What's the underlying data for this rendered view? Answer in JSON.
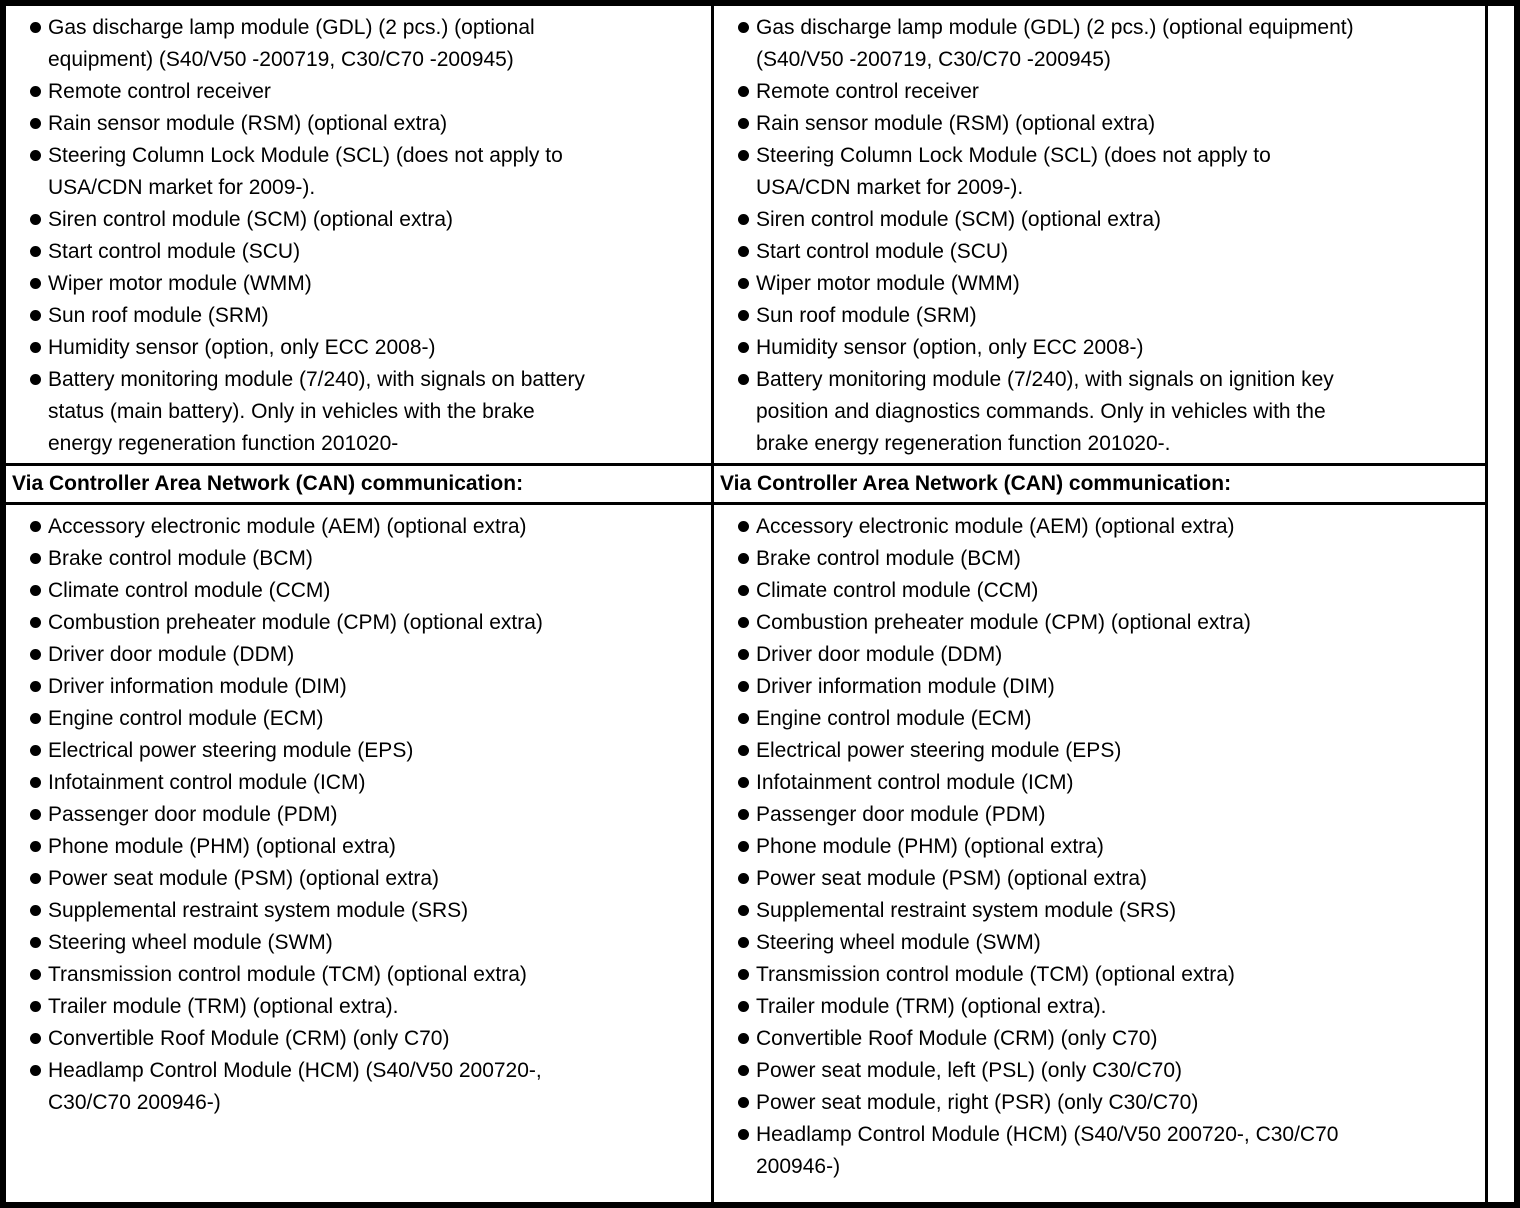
{
  "page": {
    "background_color": "#ffffff",
    "border_color": "#000000"
  },
  "table": {
    "columns": [
      {
        "top_items": [
          "Gas discharge lamp module (GDL) (2 pcs.) (optional\nequipment) (S40/V50 -200719, C30/C70 -200945)",
          "Remote control receiver",
          "Rain sensor module (RSM) (optional extra)",
          "Steering Column Lock Module (SCL) (does not apply to\nUSA/CDN market for 2009-).",
          "Siren control module (SCM) (optional extra)",
          "Start control module (SCU)",
          "Wiper motor module (WMM)",
          "Sun roof module (SRM)",
          "Humidity sensor (option, only ECC 2008-)",
          "Battery monitoring module (7/240), with signals on battery\nstatus (main battery). Only in vehicles with the brake\nenergy regeneration function 201020-"
        ],
        "can_header": "Via Controller Area Network (CAN) communication:",
        "bottom_items": [
          "Accessory electronic module (AEM) (optional extra)",
          "Brake control module (BCM)",
          "Climate control module (CCM)",
          "Combustion preheater module (CPM) (optional extra)",
          "Driver door module (DDM)",
          "Driver information module (DIM)",
          "Engine control module (ECM)",
          "Electrical power steering module (EPS)",
          "Infotainment control module (ICM)",
          "Passenger door module (PDM)",
          "Phone module (PHM) (optional extra)",
          "Power seat module (PSM) (optional extra)",
          "Supplemental restraint system module (SRS)",
          "Steering wheel module (SWM)",
          "Transmission control module (TCM) (optional extra)",
          "Trailer module (TRM) (optional extra).",
          "Convertible Roof Module (CRM) (only C70)",
          "Headlamp Control Module (HCM) (S40/V50 200720-,\nC30/C70 200946-)"
        ]
      },
      {
        "top_items": [
          "Gas discharge lamp module (GDL) (2 pcs.) (optional equipment)\n(S40/V50 -200719, C30/C70 -200945)",
          "Remote control receiver",
          "Rain sensor module (RSM) (optional extra)",
          "Steering Column Lock Module (SCL) (does not apply to\nUSA/CDN market for 2009-).",
          "Siren control module (SCM) (optional extra)",
          "Start control module (SCU)",
          "Wiper motor module (WMM)",
          "Sun roof module (SRM)",
          "Humidity sensor (option, only ECC 2008-)",
          "Battery monitoring module (7/240), with signals on ignition key\nposition and diagnostics commands. Only in vehicles with the\nbrake energy regeneration function 201020-."
        ],
        "can_header": "Via Controller Area Network (CAN) communication:",
        "bottom_items": [
          "Accessory electronic module (AEM) (optional extra)",
          "Brake control module (BCM)",
          "Climate control module (CCM)",
          "Combustion preheater module (CPM) (optional extra)",
          "Driver door module (DDM)",
          "Driver information module (DIM)",
          "Engine control module (ECM)",
          "Electrical power steering module (EPS)",
          "Infotainment control module (ICM)",
          "Passenger door module (PDM)",
          "Phone module (PHM) (optional extra)",
          "Power seat module (PSM) (optional extra)",
          "Supplemental restraint system module (SRS)",
          "Steering wheel module (SWM)",
          "Transmission control module (TCM) (optional extra)",
          "Trailer module (TRM) (optional extra).",
          "Convertible Roof Module (CRM) (only C70)",
          "Power seat module, left (PSL) (only C30/C70)",
          "Power seat module, right (PSR) (only C30/C70)",
          "Headlamp Control Module (HCM) (S40/V50 200720-, C30/C70\n200946-)"
        ]
      }
    ]
  }
}
